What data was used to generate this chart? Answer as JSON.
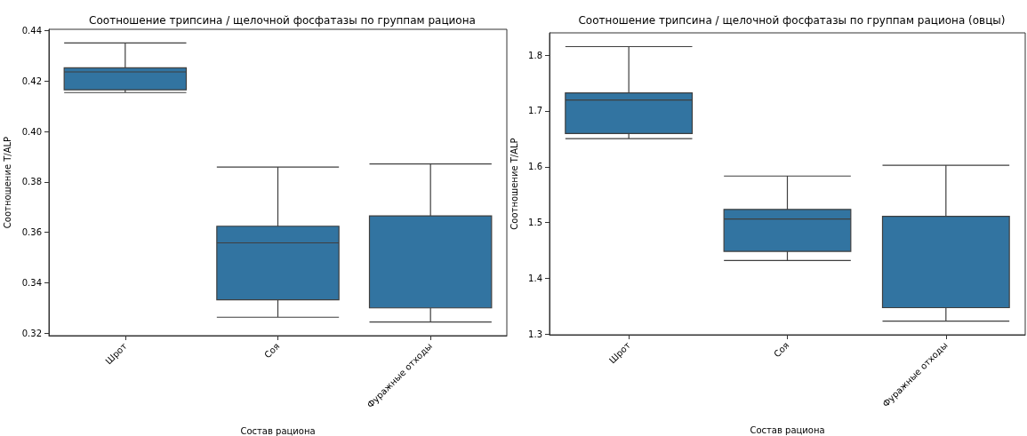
{
  "chart_data": [
    {
      "type": "box",
      "title": "Соотношение трипсина / щелочной фосфатазы по группам рациона",
      "xlabel": "Состав рациона",
      "ylabel": "Соотношение T/ALP",
      "categories": [
        "Шрот",
        "Соя",
        "Фуражные отходы"
      ],
      "color": "#3274a1",
      "boxes": [
        {
          "low": 0.4154,
          "q1": 0.4165,
          "median": 0.4236,
          "q3": 0.4252,
          "high": 0.4351
        },
        {
          "low": 0.3263,
          "q1": 0.3332,
          "median": 0.3558,
          "q3": 0.3624,
          "high": 0.3859
        },
        {
          "low": 0.3244,
          "q1": 0.33,
          "median": 0.3665,
          "q3": 0.3665,
          "high": 0.3871
        }
      ],
      "ylim": [
        0.319,
        0.4405
      ],
      "yticks": [
        0.32,
        0.34,
        0.36,
        0.38,
        {
          "value": 0.4,
          "label": "0.40"
        },
        0.42,
        0.44
      ]
    },
    {
      "type": "box",
      "title": "Соотношение трипсина / щелочной фосфатазы по группам рациона (овцы)",
      "xlabel": "Состав рациона",
      "ylabel": "Соотношение T/ALP",
      "categories": [
        "Шрот",
        "Соя",
        "Фуражные отходы"
      ],
      "color": "#3274a1",
      "boxes": [
        {
          "low": 1.6504,
          "q1": 1.6597,
          "median": 1.7196,
          "q3": 1.7325,
          "high": 1.8153
        },
        {
          "low": 1.432,
          "q1": 1.4485,
          "median": 1.5065,
          "q3": 1.5236,
          "high": 1.5834
        },
        {
          "low": 1.3235,
          "q1": 1.3475,
          "median": 1.5113,
          "q3": 1.5113,
          "high": 1.6028
        }
      ],
      "ylim": [
        1.299,
        1.84
      ],
      "yticks": [
        1.3,
        1.4,
        1.5,
        1.6,
        1.7,
        1.8
      ]
    }
  ]
}
